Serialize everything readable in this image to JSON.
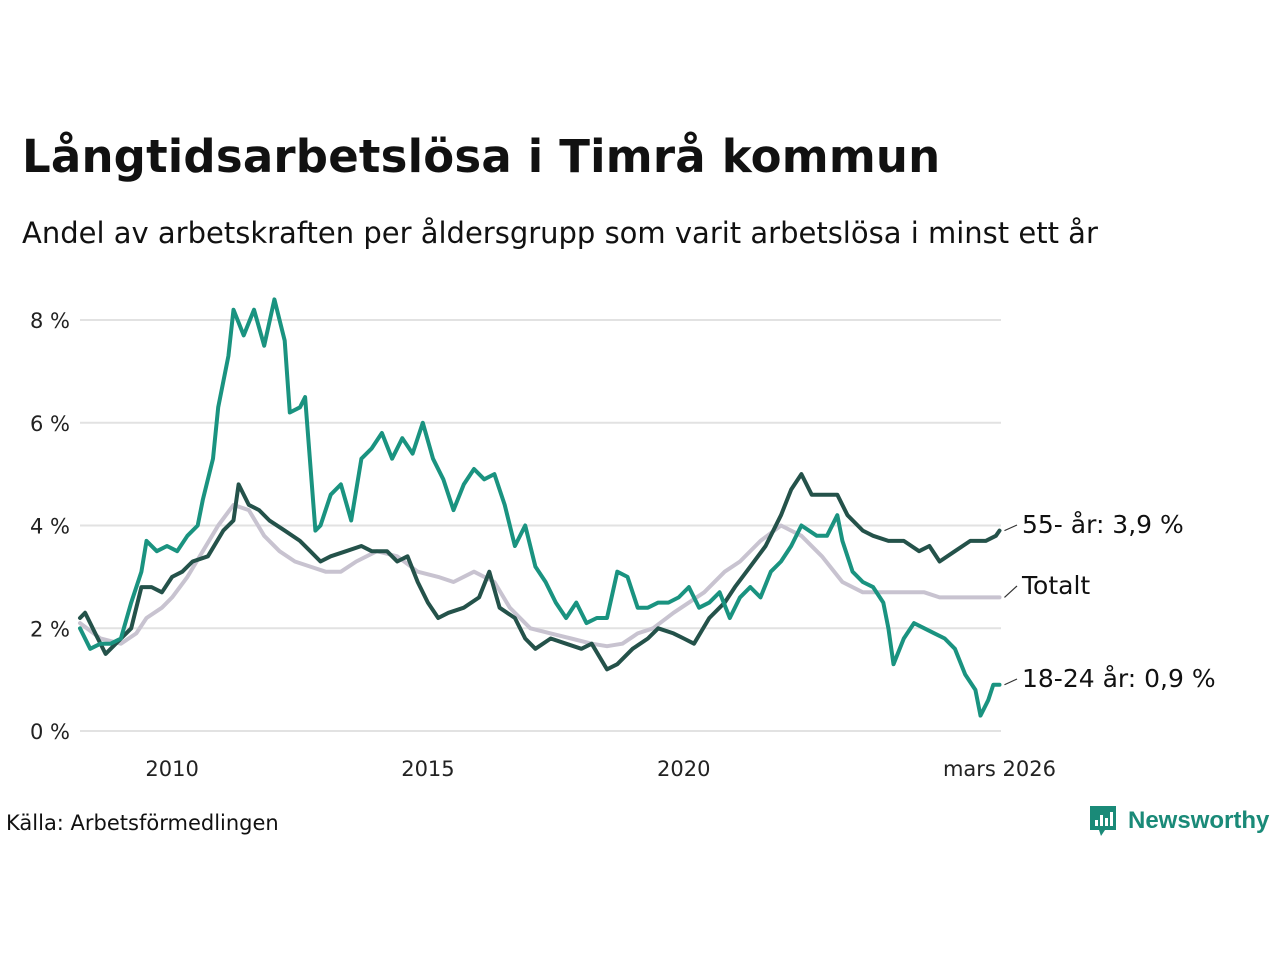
{
  "title": "Långtidsarbetslösa i Timrå kommun",
  "subtitle": "Andel av arbetskraften per åldersgrupp som varit arbetslösa i minst ett år",
  "source": "Källa: Arbetsförmedlingen",
  "brand": "Newsworthy",
  "colors": {
    "youth": "#1a9380",
    "senior": "#24524a",
    "total": "#c8c3d0",
    "grid": "#e2e2e2",
    "brand": "#1a8a78"
  },
  "chart_data": {
    "type": "line",
    "title": "Långtidsarbetslösa i Timrå kommun",
    "xlim": [
      2008.2,
      2026.2
    ],
    "ylim": [
      0,
      8
    ],
    "yticks": [
      0,
      2,
      4,
      6,
      8
    ],
    "ytick_labels": [
      "0 %",
      "2 %",
      "4 %",
      "6 %",
      "8 %"
    ],
    "xticks": [
      2010,
      2015,
      2020,
      2026.17
    ],
    "xtick_labels": [
      "2010",
      "2015",
      "2020",
      "mars 2026"
    ],
    "series": [
      {
        "name": "Totalt",
        "key": "total",
        "end_label": "Totalt",
        "points": [
          [
            2008.2,
            2.1
          ],
          [
            2008.6,
            1.8
          ],
          [
            2009.0,
            1.7
          ],
          [
            2009.3,
            1.9
          ],
          [
            2009.5,
            2.2
          ],
          [
            2009.8,
            2.4
          ],
          [
            2010.0,
            2.6
          ],
          [
            2010.3,
            3.0
          ],
          [
            2010.6,
            3.5
          ],
          [
            2010.9,
            4.0
          ],
          [
            2011.2,
            4.4
          ],
          [
            2011.5,
            4.3
          ],
          [
            2011.8,
            3.8
          ],
          [
            2012.1,
            3.5
          ],
          [
            2012.4,
            3.3
          ],
          [
            2012.7,
            3.2
          ],
          [
            2013.0,
            3.1
          ],
          [
            2013.3,
            3.1
          ],
          [
            2013.6,
            3.3
          ],
          [
            2014.0,
            3.5
          ],
          [
            2014.4,
            3.4
          ],
          [
            2014.8,
            3.1
          ],
          [
            2015.2,
            3.0
          ],
          [
            2015.5,
            2.9
          ],
          [
            2015.9,
            3.1
          ],
          [
            2016.1,
            3.0
          ],
          [
            2016.3,
            2.9
          ],
          [
            2016.6,
            2.4
          ],
          [
            2017.0,
            2.0
          ],
          [
            2017.4,
            1.9
          ],
          [
            2017.8,
            1.8
          ],
          [
            2018.2,
            1.7
          ],
          [
            2018.5,
            1.65
          ],
          [
            2018.8,
            1.7
          ],
          [
            2019.1,
            1.9
          ],
          [
            2019.4,
            2.0
          ],
          [
            2019.8,
            2.3
          ],
          [
            2020.1,
            2.5
          ],
          [
            2020.4,
            2.7
          ],
          [
            2020.8,
            3.1
          ],
          [
            2021.1,
            3.3
          ],
          [
            2021.5,
            3.7
          ],
          [
            2021.9,
            4.0
          ],
          [
            2022.3,
            3.8
          ],
          [
            2022.7,
            3.4
          ],
          [
            2023.1,
            2.9
          ],
          [
            2023.5,
            2.7
          ],
          [
            2023.9,
            2.7
          ],
          [
            2024.3,
            2.7
          ],
          [
            2024.7,
            2.7
          ],
          [
            2025.0,
            2.6
          ],
          [
            2025.4,
            2.6
          ],
          [
            2025.8,
            2.6
          ],
          [
            2026.17,
            2.6
          ]
        ]
      },
      {
        "name": "55- år",
        "key": "senior",
        "end_label": "55- år: 3,9 %",
        "points": [
          [
            2008.2,
            2.2
          ],
          [
            2008.3,
            2.3
          ],
          [
            2008.5,
            1.9
          ],
          [
            2008.7,
            1.5
          ],
          [
            2008.9,
            1.7
          ],
          [
            2009.2,
            2.0
          ],
          [
            2009.4,
            2.8
          ],
          [
            2009.6,
            2.8
          ],
          [
            2009.8,
            2.7
          ],
          [
            2010.0,
            3.0
          ],
          [
            2010.2,
            3.1
          ],
          [
            2010.4,
            3.3
          ],
          [
            2010.7,
            3.4
          ],
          [
            2011.0,
            3.9
          ],
          [
            2011.2,
            4.1
          ],
          [
            2011.3,
            4.8
          ],
          [
            2011.5,
            4.4
          ],
          [
            2011.7,
            4.3
          ],
          [
            2011.9,
            4.1
          ],
          [
            2012.2,
            3.9
          ],
          [
            2012.5,
            3.7
          ],
          [
            2012.7,
            3.5
          ],
          [
            2012.9,
            3.3
          ],
          [
            2013.1,
            3.4
          ],
          [
            2013.4,
            3.5
          ],
          [
            2013.7,
            3.6
          ],
          [
            2013.9,
            3.5
          ],
          [
            2014.2,
            3.5
          ],
          [
            2014.4,
            3.3
          ],
          [
            2014.6,
            3.4
          ],
          [
            2014.8,
            2.9
          ],
          [
            2015.0,
            2.5
          ],
          [
            2015.2,
            2.2
          ],
          [
            2015.4,
            2.3
          ],
          [
            2015.7,
            2.4
          ],
          [
            2016.0,
            2.6
          ],
          [
            2016.2,
            3.1
          ],
          [
            2016.4,
            2.4
          ],
          [
            2016.7,
            2.2
          ],
          [
            2016.9,
            1.8
          ],
          [
            2017.1,
            1.6
          ],
          [
            2017.4,
            1.8
          ],
          [
            2017.7,
            1.7
          ],
          [
            2018.0,
            1.6
          ],
          [
            2018.2,
            1.7
          ],
          [
            2018.5,
            1.2
          ],
          [
            2018.7,
            1.3
          ],
          [
            2019.0,
            1.6
          ],
          [
            2019.3,
            1.8
          ],
          [
            2019.5,
            2.0
          ],
          [
            2019.8,
            1.9
          ],
          [
            2020.0,
            1.8
          ],
          [
            2020.2,
            1.7
          ],
          [
            2020.5,
            2.2
          ],
          [
            2020.8,
            2.5
          ],
          [
            2021.0,
            2.8
          ],
          [
            2021.3,
            3.2
          ],
          [
            2021.6,
            3.6
          ],
          [
            2021.9,
            4.2
          ],
          [
            2022.1,
            4.7
          ],
          [
            2022.3,
            5.0
          ],
          [
            2022.5,
            4.6
          ],
          [
            2022.8,
            4.6
          ],
          [
            2023.0,
            4.6
          ],
          [
            2023.2,
            4.2
          ],
          [
            2023.5,
            3.9
          ],
          [
            2023.7,
            3.8
          ],
          [
            2024.0,
            3.7
          ],
          [
            2024.3,
            3.7
          ],
          [
            2024.6,
            3.5
          ],
          [
            2024.8,
            3.6
          ],
          [
            2025.0,
            3.3
          ],
          [
            2025.3,
            3.5
          ],
          [
            2025.6,
            3.7
          ],
          [
            2025.9,
            3.7
          ],
          [
            2026.1,
            3.8
          ],
          [
            2026.17,
            3.9
          ]
        ]
      },
      {
        "name": "18-24 år",
        "key": "youth",
        "end_label": "18-24 år: 0,9 %",
        "points": [
          [
            2008.2,
            2.0
          ],
          [
            2008.4,
            1.6
          ],
          [
            2008.6,
            1.7
          ],
          [
            2008.8,
            1.7
          ],
          [
            2009.0,
            1.8
          ],
          [
            2009.2,
            2.5
          ],
          [
            2009.4,
            3.1
          ],
          [
            2009.5,
            3.7
          ],
          [
            2009.7,
            3.5
          ],
          [
            2009.9,
            3.6
          ],
          [
            2010.1,
            3.5
          ],
          [
            2010.3,
            3.8
          ],
          [
            2010.5,
            4.0
          ],
          [
            2010.6,
            4.5
          ],
          [
            2010.8,
            5.3
          ],
          [
            2010.9,
            6.3
          ],
          [
            2011.1,
            7.3
          ],
          [
            2011.2,
            8.2
          ],
          [
            2011.4,
            7.7
          ],
          [
            2011.6,
            8.2
          ],
          [
            2011.8,
            7.5
          ],
          [
            2012.0,
            8.4
          ],
          [
            2012.2,
            7.6
          ],
          [
            2012.3,
            6.2
          ],
          [
            2012.5,
            6.3
          ],
          [
            2012.6,
            6.5
          ],
          [
            2012.8,
            3.9
          ],
          [
            2012.9,
            4.0
          ],
          [
            2013.1,
            4.6
          ],
          [
            2013.3,
            4.8
          ],
          [
            2013.5,
            4.1
          ],
          [
            2013.7,
            5.3
          ],
          [
            2013.9,
            5.5
          ],
          [
            2014.1,
            5.8
          ],
          [
            2014.3,
            5.3
          ],
          [
            2014.5,
            5.7
          ],
          [
            2014.7,
            5.4
          ],
          [
            2014.9,
            6.0
          ],
          [
            2015.1,
            5.3
          ],
          [
            2015.3,
            4.9
          ],
          [
            2015.5,
            4.3
          ],
          [
            2015.7,
            4.8
          ],
          [
            2015.9,
            5.1
          ],
          [
            2016.1,
            4.9
          ],
          [
            2016.3,
            5.0
          ],
          [
            2016.5,
            4.4
          ],
          [
            2016.7,
            3.6
          ],
          [
            2016.9,
            4.0
          ],
          [
            2017.1,
            3.2
          ],
          [
            2017.3,
            2.9
          ],
          [
            2017.5,
            2.5
          ],
          [
            2017.7,
            2.2
          ],
          [
            2017.9,
            2.5
          ],
          [
            2018.1,
            2.1
          ],
          [
            2018.3,
            2.2
          ],
          [
            2018.5,
            2.2
          ],
          [
            2018.7,
            3.1
          ],
          [
            2018.9,
            3.0
          ],
          [
            2019.1,
            2.4
          ],
          [
            2019.3,
            2.4
          ],
          [
            2019.5,
            2.5
          ],
          [
            2019.7,
            2.5
          ],
          [
            2019.9,
            2.6
          ],
          [
            2020.1,
            2.8
          ],
          [
            2020.3,
            2.4
          ],
          [
            2020.5,
            2.5
          ],
          [
            2020.7,
            2.7
          ],
          [
            2020.9,
            2.2
          ],
          [
            2021.1,
            2.6
          ],
          [
            2021.3,
            2.8
          ],
          [
            2021.5,
            2.6
          ],
          [
            2021.7,
            3.1
          ],
          [
            2021.9,
            3.3
          ],
          [
            2022.1,
            3.6
          ],
          [
            2022.3,
            4.0
          ],
          [
            2022.6,
            3.8
          ],
          [
            2022.8,
            3.8
          ],
          [
            2023.0,
            4.2
          ],
          [
            2023.1,
            3.7
          ],
          [
            2023.3,
            3.1
          ],
          [
            2023.5,
            2.9
          ],
          [
            2023.7,
            2.8
          ],
          [
            2023.9,
            2.5
          ],
          [
            2024.0,
            2.0
          ],
          [
            2024.1,
            1.3
          ],
          [
            2024.3,
            1.8
          ],
          [
            2024.5,
            2.1
          ],
          [
            2024.7,
            2.0
          ],
          [
            2024.9,
            1.9
          ],
          [
            2025.1,
            1.8
          ],
          [
            2025.3,
            1.6
          ],
          [
            2025.5,
            1.1
          ],
          [
            2025.7,
            0.8
          ],
          [
            2025.8,
            0.3
          ],
          [
            2025.95,
            0.6
          ],
          [
            2026.05,
            0.9
          ],
          [
            2026.17,
            0.9
          ]
        ]
      }
    ]
  }
}
